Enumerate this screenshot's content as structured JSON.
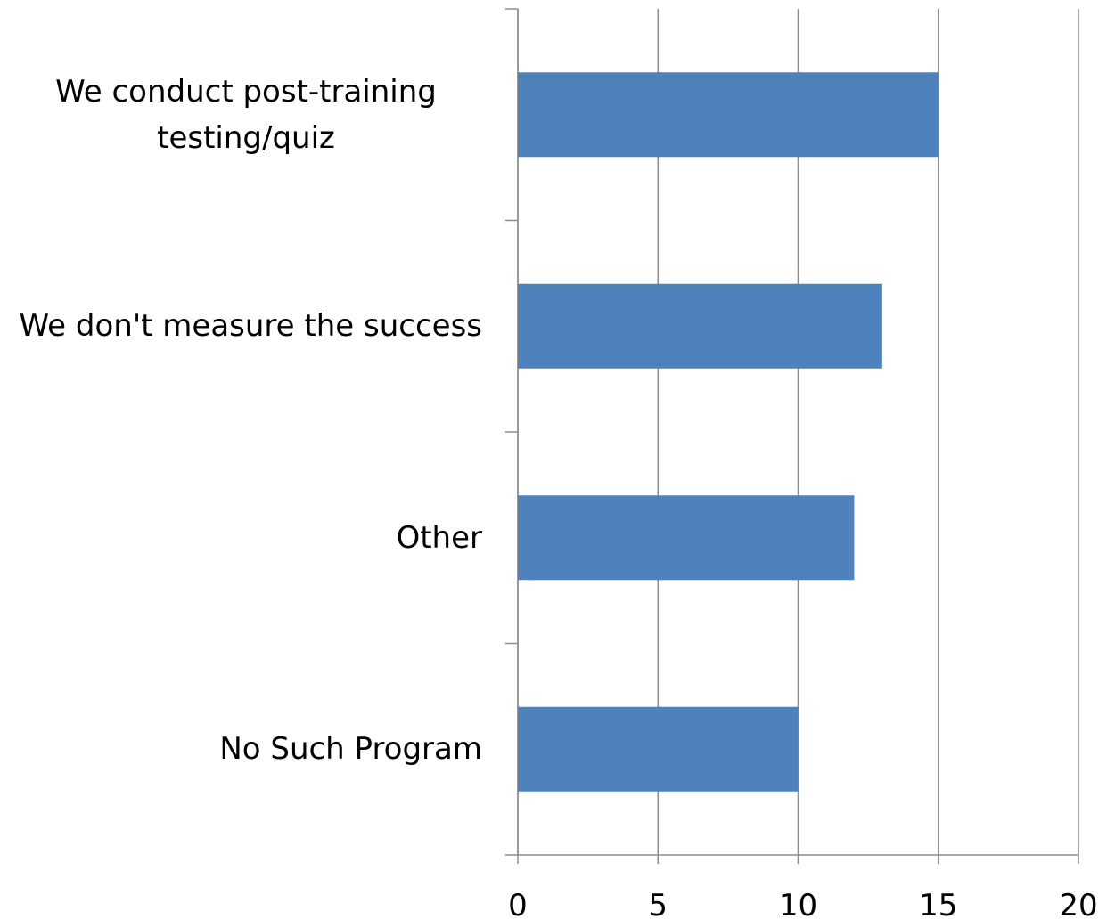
{
  "chart_data": {
    "type": "bar",
    "orientation": "horizontal",
    "categories": [
      "We conduct post-training testing/quiz",
      "We don't measure the success",
      "Other",
      "No Such Program"
    ],
    "values": [
      15,
      13,
      12,
      10
    ],
    "color": "#4f81bd",
    "xlim": [
      0,
      20
    ],
    "xticks": [
      0,
      5,
      10,
      15,
      20
    ],
    "grid": true
  }
}
